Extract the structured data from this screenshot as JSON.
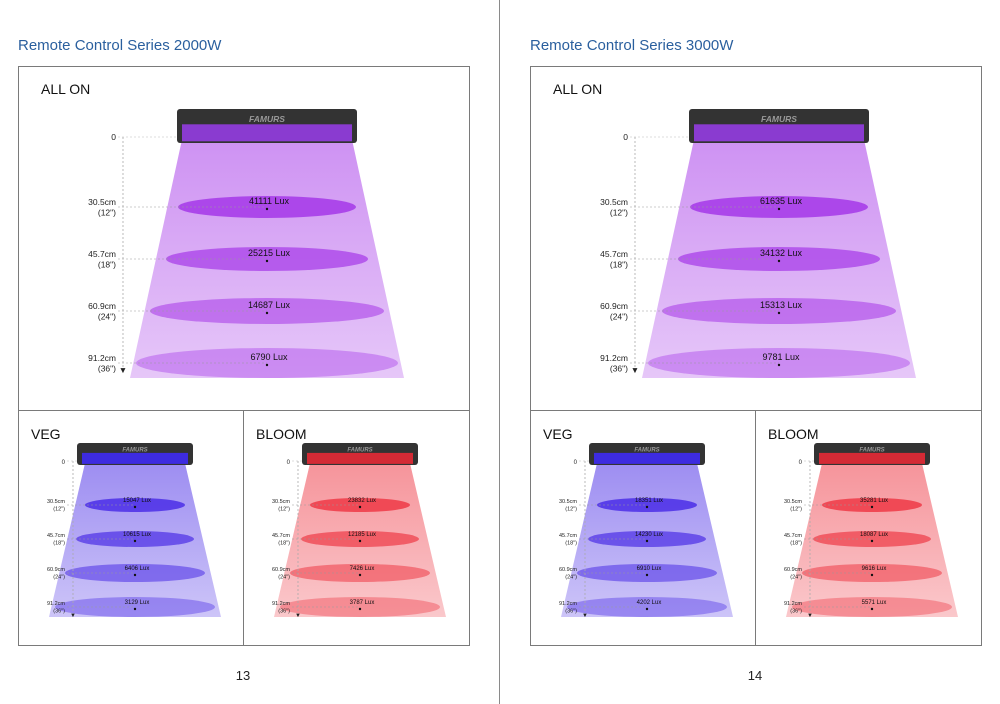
{
  "pages": [
    {
      "title": "Remote Control Series 2000W",
      "page_number": "13",
      "panels": [
        {
          "mode": "ALL ON",
          "brand": "FAMURS",
          "zero": "0",
          "lux": [
            "41111 Lux",
            "25215 Lux",
            "14687 Lux",
            "6790 Lux"
          ],
          "color": "#a537e8",
          "panel_color": "#8a3bd0"
        },
        {
          "mode": "VEG",
          "brand": "FAMURS",
          "zero": "0",
          "lux": [
            "15047 Lux",
            "10615 Lux",
            "6406 Lux",
            "3129 Lux"
          ],
          "color": "#4b2ee6",
          "panel_color": "#3d2be0"
        },
        {
          "mode": "BLOOM",
          "brand": "FAMURS",
          "zero": "0",
          "lux": [
            "23832 Lux",
            "12185 Lux",
            "7426 Lux",
            "3787 Lux"
          ],
          "color": "#ee3a46",
          "panel_color": "#d42a35"
        }
      ]
    },
    {
      "title": "Remote Control Series 3000W",
      "page_number": "14",
      "panels": [
        {
          "mode": "ALL ON",
          "brand": "FAMURS",
          "zero": "0",
          "lux": [
            "61635 Lux",
            "34132 Lux",
            "15313 Lux",
            "9781 Lux"
          ],
          "color": "#a537e8",
          "panel_color": "#8a3bd0"
        },
        {
          "mode": "VEG",
          "brand": "FAMURS",
          "zero": "0",
          "lux": [
            "18351 Lux",
            "14230 Lux",
            "6910 Lux",
            "4202 Lux"
          ],
          "color": "#4b2ee6",
          "panel_color": "#3d2be0"
        },
        {
          "mode": "BLOOM",
          "brand": "FAMURS",
          "zero": "0",
          "lux": [
            "35281 Lux",
            "18087 Lux",
            "9616 Lux",
            "5571 Lux"
          ],
          "color": "#ee3a46",
          "panel_color": "#d42a35"
        }
      ]
    }
  ],
  "distances": [
    {
      "cm": "30.5cm",
      "inch": "(12\")"
    },
    {
      "cm": "45.7cm",
      "inch": "(18\")"
    },
    {
      "cm": "60.9cm",
      "inch": "(24\")"
    },
    {
      "cm": "91.2cm",
      "inch": "(36\")"
    }
  ]
}
